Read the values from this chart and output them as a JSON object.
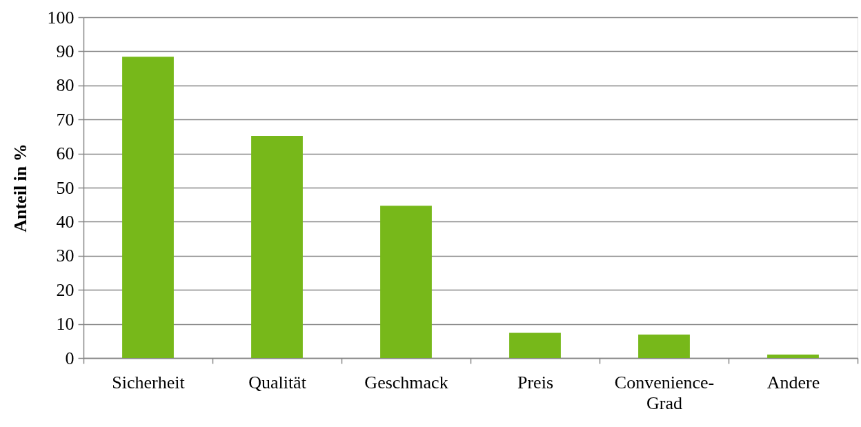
{
  "chart_data": {
    "type": "bar",
    "ylabel": "Anteil in %",
    "categories": [
      "Sicherheit",
      "Qualität",
      "Geschmack",
      "Preis",
      "Convenience-Grad",
      "Andere"
    ],
    "values": [
      88.4,
      65.2,
      44.7,
      7.4,
      6.9,
      1.0
    ],
    "color": "#77b81a",
    "ylim": [
      0,
      100
    ],
    "yticks": [
      0,
      10,
      20,
      30,
      40,
      50,
      60,
      70,
      80,
      90,
      100
    ],
    "grid": "y"
  }
}
